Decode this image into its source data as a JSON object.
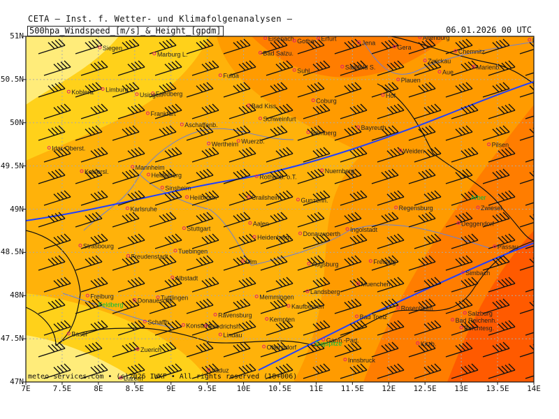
{
  "header": {
    "title": "CETA — Inst. f. Wetter- und Klimafolgenanalysen —",
    "parameter": "500hpa_Windspeed_[m/s]_&_Height_[gpdm]",
    "datetime": "06.01.2026 00 UTC"
  },
  "footer": {
    "copyright": "meteo-services.com • (c)2026 IWKF • All rights reserved (18+006)"
  },
  "axes": {
    "lat_labels": [
      "51N",
      "50.5N",
      "50N",
      "49.5N",
      "49N",
      "48.5N",
      "48N",
      "47.5N",
      "47N"
    ],
    "lon_labels": [
      "7E",
      "7.5E",
      "8E",
      "8.5E",
      "9E",
      "9.5E",
      "10E",
      "10.5E",
      "11E",
      "11.5E",
      "12E",
      "12.5E",
      "13E",
      "13.5E",
      "14E"
    ]
  },
  "map": {
    "lon_range": [
      7,
      14
    ],
    "lat_range": [
      47,
      51
    ],
    "colors": {
      "wind_light": "#ffec7a",
      "wind_yellow": "#ffd11a",
      "wind_gold": "#ffb20a",
      "wind_orange": "#ff9b00",
      "wind_dark_orange": "#ff7d00",
      "wind_red_orange": "#ff5a00",
      "height_contour": "#2040ff",
      "borders": "#111111",
      "rivers": "#6b7fd7",
      "city_dot": "#e0206a",
      "special_label": "#00c040"
    },
    "cities": [
      {
        "name": "Eisenach",
        "lon": 10.3,
        "lat": 50.98
      },
      {
        "name": "Erfurt",
        "lon": 11.03,
        "lat": 50.98
      },
      {
        "name": "Gotha",
        "lon": 10.7,
        "lat": 50.95
      },
      {
        "name": "Jena",
        "lon": 11.59,
        "lat": 50.93
      },
      {
        "name": "Gera",
        "lon": 12.08,
        "lat": 50.88
      },
      {
        "name": "Altenburg",
        "lon": 12.43,
        "lat": 50.99
      },
      {
        "name": "Chemnitz",
        "lon": 12.92,
        "lat": 50.83
      },
      {
        "name": "Pirna",
        "lon": 13.94,
        "lat": 50.96
      },
      {
        "name": "Siegen",
        "lon": 8.02,
        "lat": 50.87
      },
      {
        "name": "Marburg L.",
        "lon": 8.77,
        "lat": 50.8
      },
      {
        "name": "Bad Salzu.",
        "lon": 10.23,
        "lat": 50.81
      },
      {
        "name": "Saalfeld S.",
        "lon": 11.36,
        "lat": 50.65
      },
      {
        "name": "Zwickau",
        "lon": 12.5,
        "lat": 50.72
      },
      {
        "name": "Suhl",
        "lon": 10.7,
        "lat": 50.61
      },
      {
        "name": "Aue",
        "lon": 12.7,
        "lat": 50.59
      },
      {
        "name": "Marienb.",
        "lon": 13.17,
        "lat": 50.65
      },
      {
        "name": "Fulda",
        "lon": 9.68,
        "lat": 50.55
      },
      {
        "name": "Plauen",
        "lon": 12.13,
        "lat": 50.5
      },
      {
        "name": "Koblenz",
        "lon": 7.59,
        "lat": 50.36
      },
      {
        "name": "Limburg L.",
        "lon": 8.06,
        "lat": 50.39
      },
      {
        "name": "Friedberg",
        "lon": 8.75,
        "lat": 50.34
      },
      {
        "name": "Usingen",
        "lon": 8.53,
        "lat": 50.33
      },
      {
        "name": "Coburg",
        "lon": 10.96,
        "lat": 50.26
      },
      {
        "name": "Hof",
        "lon": 11.92,
        "lat": 50.32
      },
      {
        "name": "Bad Kiss.",
        "lon": 10.07,
        "lat": 50.2
      },
      {
        "name": "Frankfurt",
        "lon": 8.68,
        "lat": 50.11
      },
      {
        "name": "Aschaffenb.",
        "lon": 9.15,
        "lat": 49.98
      },
      {
        "name": "Schweinfurt",
        "lon": 10.23,
        "lat": 50.05
      },
      {
        "name": "Bayreuth",
        "lon": 11.58,
        "lat": 49.95
      },
      {
        "name": "Bamberg",
        "lon": 10.89,
        "lat": 49.89
      },
      {
        "name": "Wuerzb.",
        "lon": 9.93,
        "lat": 49.79
      },
      {
        "name": "Wertheim",
        "lon": 9.52,
        "lat": 49.76
      },
      {
        "name": "Idar-Oberst.",
        "lon": 7.32,
        "lat": 49.71
      },
      {
        "name": "Weiden",
        "lon": 12.16,
        "lat": 49.68
      },
      {
        "name": "Pilsen",
        "lon": 13.38,
        "lat": 49.75
      },
      {
        "name": "Mannheim",
        "lon": 8.47,
        "lat": 49.49
      },
      {
        "name": "Kaisersl.",
        "lon": 7.77,
        "lat": 49.44
      },
      {
        "name": "Heidelberg",
        "lon": 8.69,
        "lat": 49.4
      },
      {
        "name": "Nuernberg",
        "lon": 11.08,
        "lat": 49.45
      },
      {
        "name": "Rothenb. o.T.",
        "lon": 10.18,
        "lat": 49.38
      },
      {
        "name": "Sinsheim",
        "lon": 8.88,
        "lat": 49.25
      },
      {
        "name": "Crailsheim",
        "lon": 10.07,
        "lat": 49.14
      },
      {
        "name": "Gunzenh.",
        "lon": 10.75,
        "lat": 49.11
      },
      {
        "name": "Heilbronn",
        "lon": 9.22,
        "lat": 49.14
      },
      {
        "name": "Karlsruhe",
        "lon": 8.4,
        "lat": 49.01
      },
      {
        "name": "Regensburg",
        "lon": 12.1,
        "lat": 49.02
      },
      {
        "name": "Zwiesel",
        "lon": 13.23,
        "lat": 49.02
      },
      {
        "name": "Aalen",
        "lon": 10.09,
        "lat": 48.84
      },
      {
        "name": "Heidenheim",
        "lon": 10.15,
        "lat": 48.68
      },
      {
        "name": "Ingolstadt",
        "lon": 11.43,
        "lat": 48.77
      },
      {
        "name": "Donauwoerth",
        "lon": 10.78,
        "lat": 48.72
      },
      {
        "name": "Deggendorf",
        "lon": 12.96,
        "lat": 48.84
      },
      {
        "name": "Stuttgart",
        "lon": 9.18,
        "lat": 48.78
      },
      {
        "name": "Strasbourg",
        "lon": 7.75,
        "lat": 48.58
      },
      {
        "name": "Freudenstadt",
        "lon": 8.41,
        "lat": 48.46
      },
      {
        "name": "Tuebingen",
        "lon": 9.06,
        "lat": 48.52
      },
      {
        "name": "Passau",
        "lon": 13.46,
        "lat": 48.57
      },
      {
        "name": "Augsburg",
        "lon": 10.9,
        "lat": 48.37
      },
      {
        "name": "Freising",
        "lon": 11.75,
        "lat": 48.4
      },
      {
        "name": "Ulm",
        "lon": 9.99,
        "lat": 48.4
      },
      {
        "name": "Albstadt",
        "lon": 9.02,
        "lat": 48.21
      },
      {
        "name": "Simbach",
        "lon": 13.02,
        "lat": 48.27
      },
      {
        "name": "Muenchen",
        "lon": 11.58,
        "lat": 48.14
      },
      {
        "name": "Freiburg",
        "lon": 7.85,
        "lat": 48.0
      },
      {
        "name": "Tuttlingen",
        "lon": 8.82,
        "lat": 47.98
      },
      {
        "name": "Memmingen",
        "lon": 10.18,
        "lat": 47.99
      },
      {
        "name": "Landsberg",
        "lon": 10.88,
        "lat": 48.05
      },
      {
        "name": "Donaueschi.",
        "lon": 8.5,
        "lat": 47.95
      },
      {
        "name": "Ravensburg",
        "lon": 9.61,
        "lat": 47.78
      },
      {
        "name": "Kaufbeuren",
        "lon": 10.62,
        "lat": 47.88
      },
      {
        "name": "Rosenheim",
        "lon": 12.13,
        "lat": 47.86
      },
      {
        "name": "Salzburg",
        "lon": 13.05,
        "lat": 47.8
      },
      {
        "name": "Schaffh.",
        "lon": 8.64,
        "lat": 47.7
      },
      {
        "name": "Konstanz",
        "lon": 9.17,
        "lat": 47.66
      },
      {
        "name": "Friedrichsh.",
        "lon": 9.48,
        "lat": 47.65
      },
      {
        "name": "Kempten",
        "lon": 10.32,
        "lat": 47.73
      },
      {
        "name": "Bad Toelz",
        "lon": 11.56,
        "lat": 47.76
      },
      {
        "name": "Bad Reichenh.",
        "lon": 12.88,
        "lat": 47.72
      },
      {
        "name": "Berchtesg.",
        "lon": 13.0,
        "lat": 47.63
      },
      {
        "name": "Basel",
        "lon": 7.59,
        "lat": 47.56
      },
      {
        "name": "Lindau",
        "lon": 9.68,
        "lat": 47.55
      },
      {
        "name": "Zuerich",
        "lon": 8.54,
        "lat": 47.38
      },
      {
        "name": "Oberstdorf",
        "lon": 10.28,
        "lat": 47.41
      },
      {
        "name": "Garm.-Part.",
        "lon": 11.1,
        "lat": 47.49
      },
      {
        "name": "Kitzb.",
        "lon": 12.4,
        "lat": 47.45
      },
      {
        "name": "Innsbruck",
        "lon": 11.4,
        "lat": 47.26
      },
      {
        "name": "Luzern",
        "lon": 8.31,
        "lat": 47.05
      },
      {
        "name": "Vaduz",
        "lon": 9.52,
        "lat": 47.14
      }
    ],
    "special_labels": [
      {
        "name": "Feldberg",
        "lon": 8.0,
        "lat": 47.87
      },
      {
        "name": "Arber",
        "lon": 13.13,
        "lat": 49.11
      },
      {
        "name": "Zugspitze",
        "lon": 10.98,
        "lat": 47.42
      }
    ]
  }
}
